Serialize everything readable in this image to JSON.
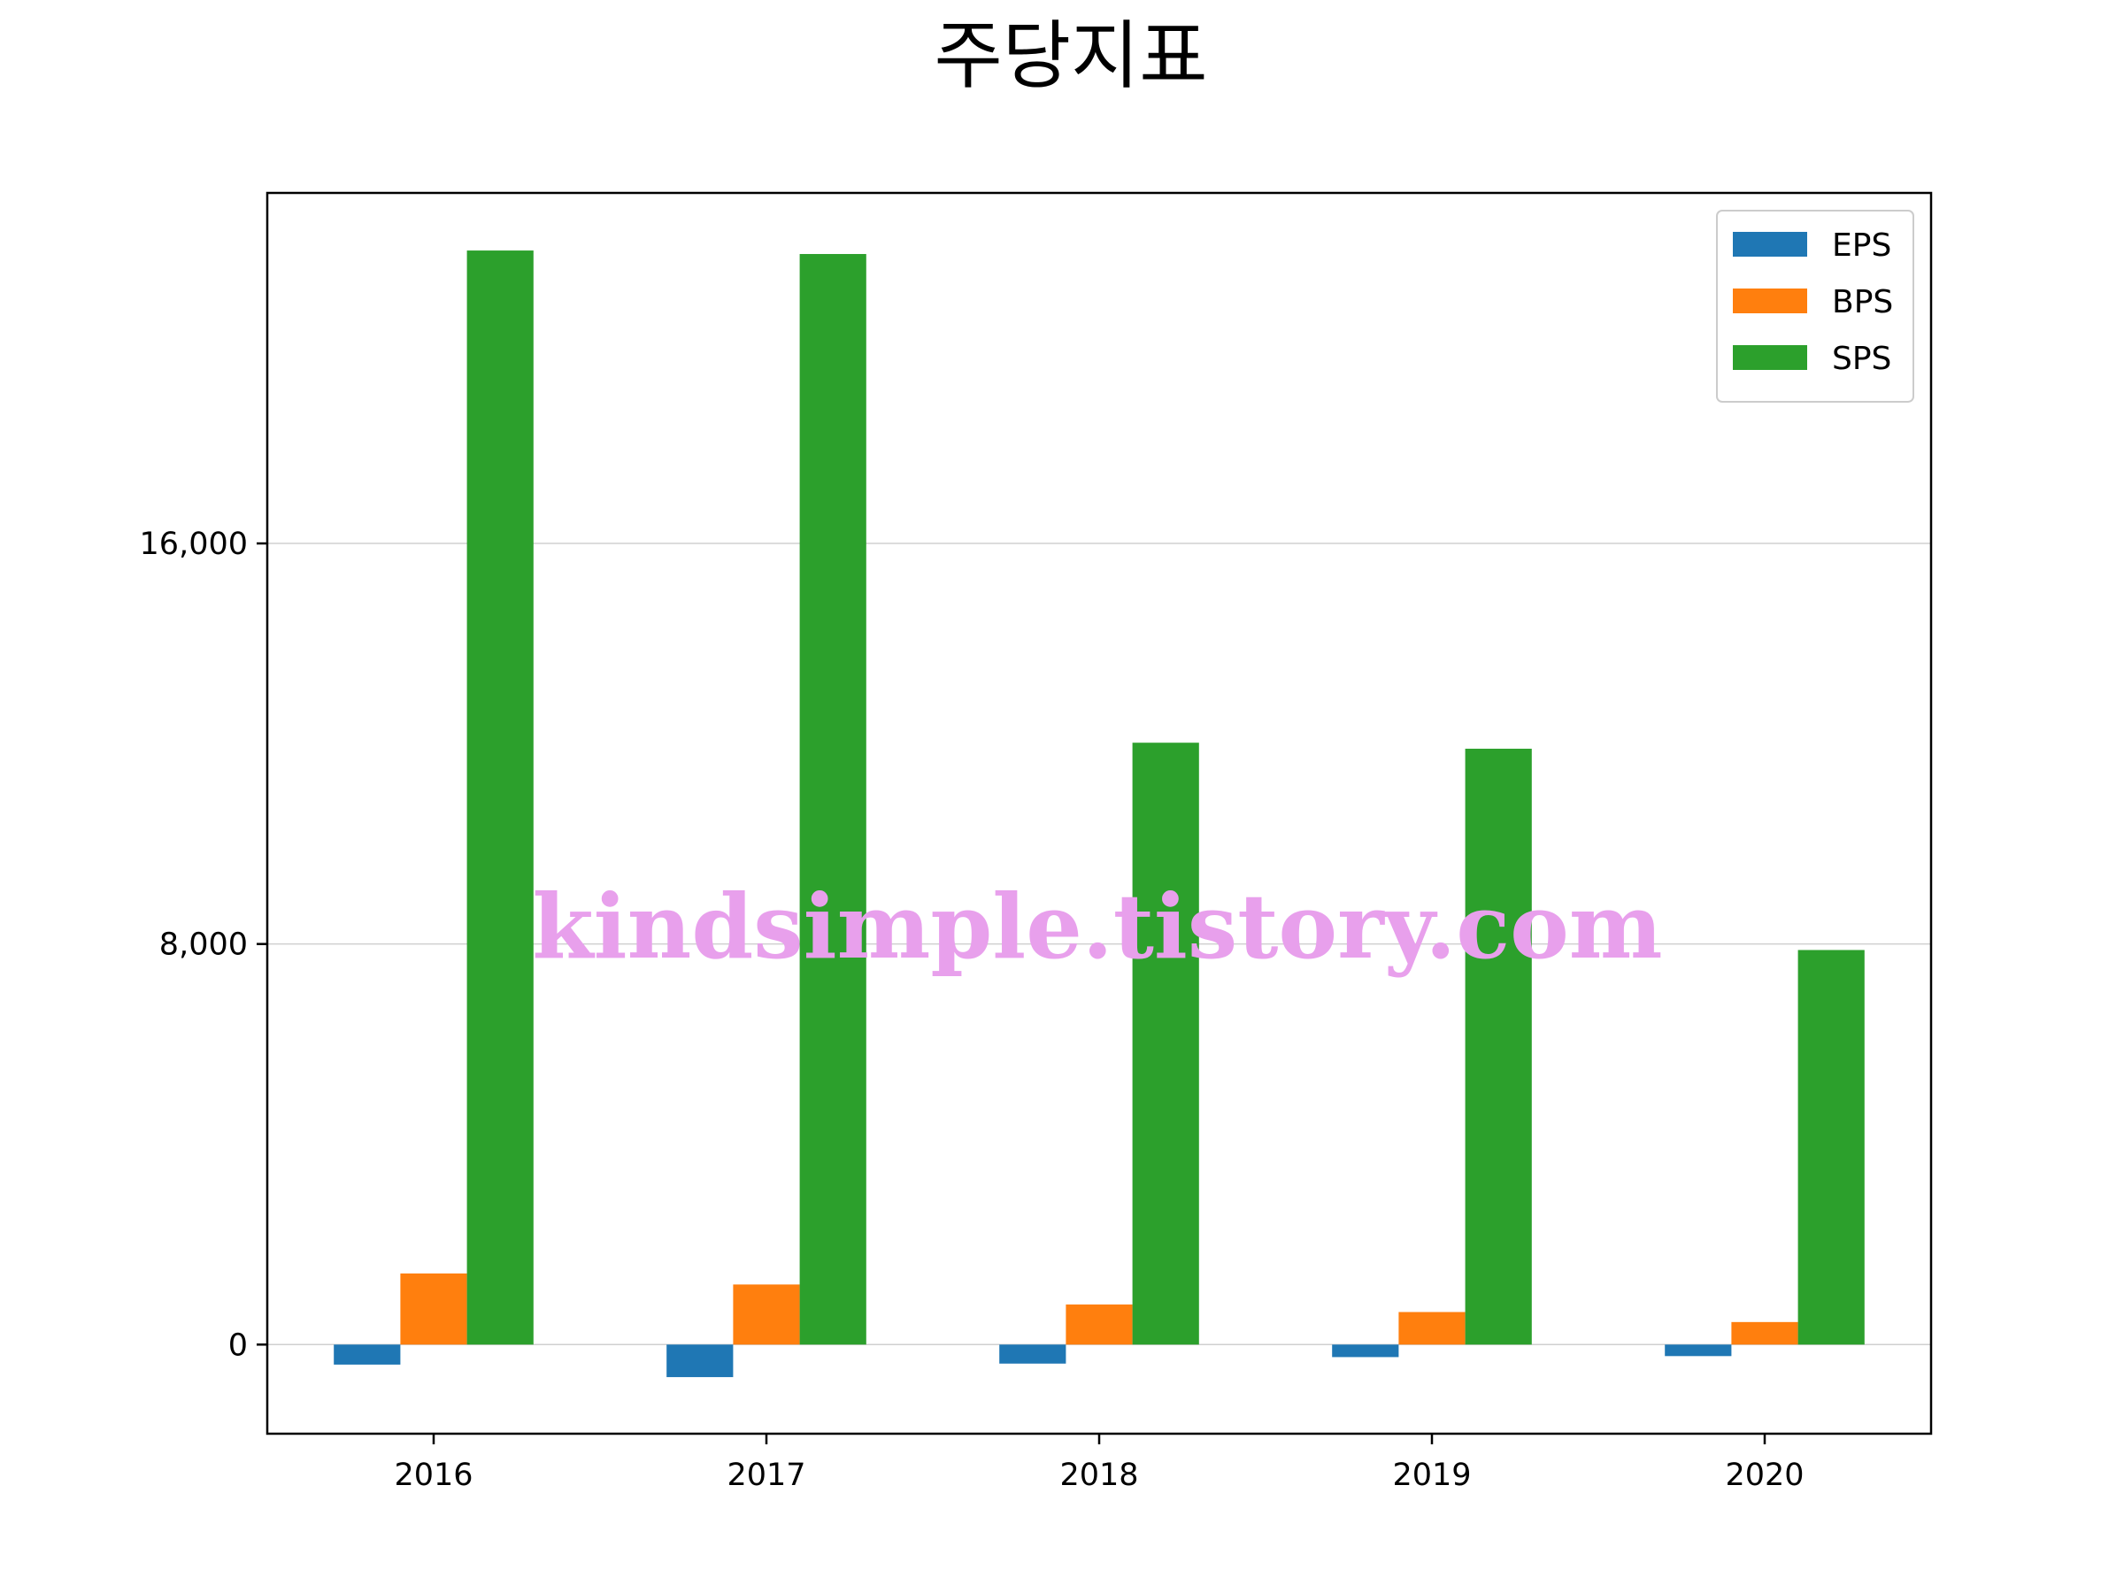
{
  "chart_data": {
    "type": "bar",
    "title": "주당지표",
    "xlabel": "",
    "ylabel": "",
    "categories": [
      "2016",
      "2017",
      "2018",
      "2019",
      "2020"
    ],
    "series": [
      {
        "name": "EPS",
        "color": "#1f77b4",
        "values": [
          -400,
          -650,
          -380,
          -250,
          -230
        ]
      },
      {
        "name": "BPS",
        "color": "#ff7f0e",
        "values": [
          1420,
          1200,
          800,
          650,
          450
        ]
      },
      {
        "name": "SPS",
        "color": "#2ca02c",
        "values": [
          21850,
          21780,
          12020,
          11900,
          7880
        ]
      }
    ],
    "ylim": [
      -1780,
      23000
    ],
    "yticks": [
      0,
      8000,
      16000
    ],
    "ytick_labels": [
      "0",
      "8,000",
      "16,000"
    ],
    "grid": "horizontal",
    "legend": "top-right",
    "watermark": "kindsimple.tistory.com"
  }
}
